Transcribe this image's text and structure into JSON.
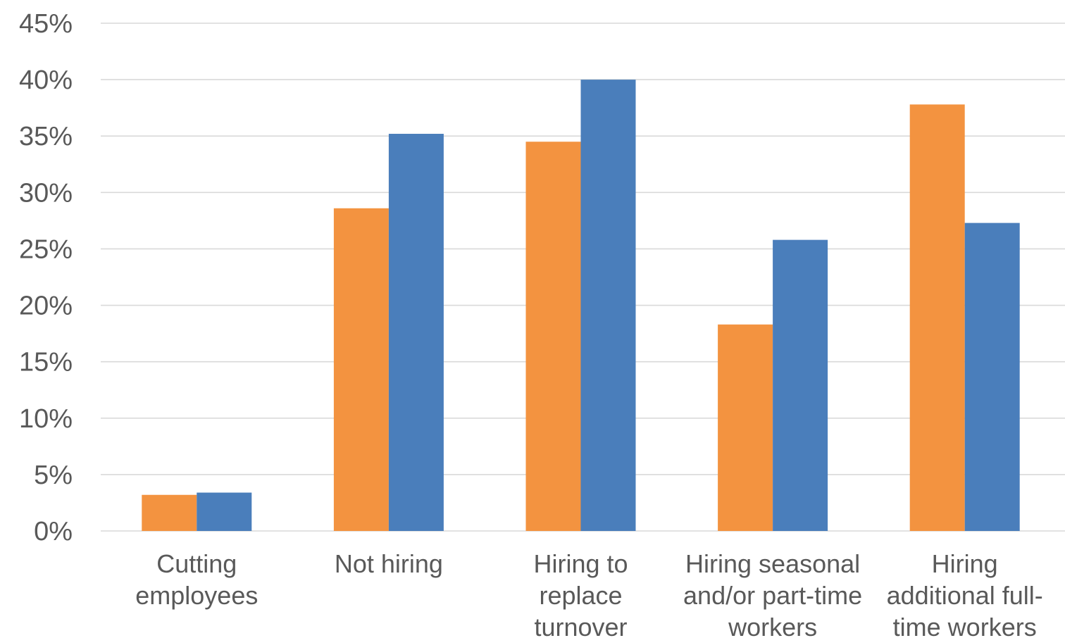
{
  "chart_data": {
    "type": "bar",
    "categories": [
      [
        "Cutting",
        "employees"
      ],
      [
        "Not hiring"
      ],
      [
        "Hiring to",
        "replace",
        "turnover"
      ],
      [
        "Hiring seasonal",
        "and/or part-time",
        "workers"
      ],
      [
        "Hiring",
        "additional full-",
        "time workers"
      ]
    ],
    "series": [
      {
        "color": "#f39340",
        "values": [
          3.2,
          28.6,
          34.5,
          18.3,
          37.8
        ]
      },
      {
        "color": "#4a7ebb",
        "values": [
          3.4,
          35.2,
          40.0,
          25.8,
          27.3
        ]
      }
    ],
    "ylim": [
      0,
      45
    ],
    "yticks": [
      "0%",
      "5%",
      "10%",
      "15%",
      "20%",
      "25%",
      "30%",
      "35%",
      "40%",
      "45%"
    ],
    "grid": true,
    "legend": "none"
  }
}
